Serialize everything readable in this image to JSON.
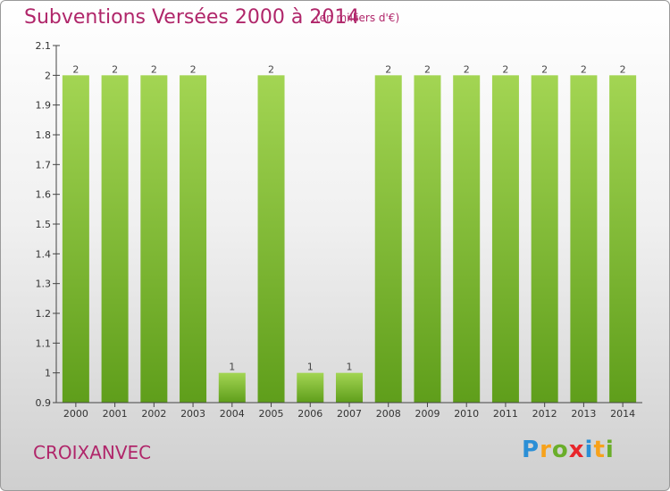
{
  "title": "Subventions Versées 2000 à 2014",
  "subtitle": "(en milliers d'€)",
  "commune": "CROIXANVEC",
  "logo": {
    "letters": [
      "P",
      "r",
      "o",
      "x",
      "i",
      "t",
      "i"
    ],
    "colors": [
      "#2b8fd6",
      "#f7a21b",
      "#6aae2a",
      "#e8262b",
      "#2b8fd6",
      "#f7a21b",
      "#6aae2a"
    ]
  },
  "colors": {
    "bar_light": "#a3d553",
    "bar_dark": "#5f9e1b",
    "title": "#b0266a"
  },
  "chart_data": {
    "type": "bar",
    "categories": [
      "2000",
      "2001",
      "2002",
      "2003",
      "2004",
      "2005",
      "2006",
      "2007",
      "2008",
      "2009",
      "2010",
      "2011",
      "2012",
      "2013",
      "2014"
    ],
    "values": [
      2,
      2,
      2,
      2,
      1,
      2,
      1,
      1,
      2,
      2,
      2,
      2,
      2,
      2,
      2
    ],
    "data_labels": [
      "2",
      "2",
      "2",
      "2",
      "1",
      "2",
      "1",
      "1",
      "2",
      "2",
      "2",
      "2",
      "2",
      "2",
      "2"
    ],
    "title": "Subventions Versées 2000 à 2014",
    "ylim": [
      0.9,
      2.1
    ],
    "yticks": [
      0.9,
      1,
      1.1,
      1.2,
      1.3,
      1.4,
      1.5,
      1.6,
      1.7,
      1.8,
      1.9,
      2,
      2.1
    ],
    "ytick_labels": [
      "0.9",
      "1",
      "1.1",
      "1.2",
      "1.3",
      "1.4",
      "1.5",
      "1.6",
      "1.7",
      "1.8",
      "1.9",
      "2",
      "2.1"
    ],
    "grid": false,
    "legend": "none"
  }
}
